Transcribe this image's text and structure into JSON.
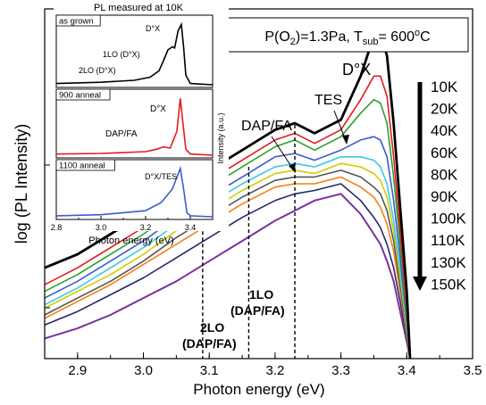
{
  "chart_data": [
    {
      "type": "line",
      "xlabel": "Photon energy (eV)",
      "ylabel": "log (PL Intensity)",
      "y_scale": "log",
      "xlim": [
        2.85,
        3.5
      ],
      "x_ticks": [
        "2.9",
        "3.0",
        "3.1",
        "3.2",
        "3.3",
        "3.4",
        "3.5"
      ],
      "condition_label": "P(O₂)=1.3Pa, T_sub= 600°C",
      "legend": {
        "labels": [
          "10K",
          "20K",
          "40K",
          "60K",
          "80K",
          "90K",
          "100K",
          "110K",
          "130K",
          "150K"
        ],
        "placement": "right"
      },
      "annotations": {
        "d0x": "D°X",
        "tes": "TES",
        "dap_fa": "DAP/FA",
        "lo1_line1": "1LO",
        "lo1_line2": "(DAP/FA)",
        "lo2_line1": "2LO",
        "lo2_line2": "(DAP/FA)"
      },
      "vertical_markers": [
        3.09,
        3.16,
        3.23
      ],
      "series": [
        {
          "name": "10K",
          "color": "#000000",
          "width": 2.8,
          "points": [
            [
              2.85,
              0.27
            ],
            [
              2.9,
              0.31
            ],
            [
              2.95,
              0.37
            ],
            [
              3.0,
              0.43
            ],
            [
              3.05,
              0.49
            ],
            [
              3.1,
              0.56
            ],
            [
              3.15,
              0.62
            ],
            [
              3.2,
              0.68
            ],
            [
              3.23,
              0.7
            ],
            [
              3.26,
              0.67
            ],
            [
              3.3,
              0.71
            ],
            [
              3.33,
              0.84
            ],
            [
              3.35,
              0.96
            ],
            [
              3.36,
              0.97
            ],
            [
              3.37,
              0.9
            ],
            [
              3.38,
              0.7
            ],
            [
              3.39,
              0.45
            ],
            [
              3.4,
              0.2
            ],
            [
              3.405,
              0.0
            ]
          ]
        },
        {
          "name": "20K",
          "color": "#e41a1c",
          "width": 1.6,
          "points": [
            [
              2.85,
              0.22
            ],
            [
              2.9,
              0.27
            ],
            [
              2.95,
              0.33
            ],
            [
              3.0,
              0.39
            ],
            [
              3.05,
              0.46
            ],
            [
              3.1,
              0.53
            ],
            [
              3.15,
              0.59
            ],
            [
              3.2,
              0.65
            ],
            [
              3.23,
              0.67
            ],
            [
              3.26,
              0.64
            ],
            [
              3.3,
              0.68
            ],
            [
              3.33,
              0.77
            ],
            [
              3.35,
              0.84
            ],
            [
              3.36,
              0.84
            ],
            [
              3.37,
              0.78
            ],
            [
              3.38,
              0.6
            ],
            [
              3.39,
              0.38
            ],
            [
              3.4,
              0.15
            ],
            [
              3.405,
              0.0
            ]
          ]
        },
        {
          "name": "40K",
          "color": "#2ca02c",
          "width": 1.6,
          "points": [
            [
              2.85,
              0.2
            ],
            [
              2.9,
              0.25
            ],
            [
              2.95,
              0.31
            ],
            [
              3.0,
              0.37
            ],
            [
              3.05,
              0.44
            ],
            [
              3.1,
              0.51
            ],
            [
              3.15,
              0.57
            ],
            [
              3.2,
              0.63
            ],
            [
              3.23,
              0.65
            ],
            [
              3.26,
              0.62
            ],
            [
              3.3,
              0.66
            ],
            [
              3.33,
              0.73
            ],
            [
              3.35,
              0.77
            ],
            [
              3.36,
              0.76
            ],
            [
              3.37,
              0.7
            ],
            [
              3.38,
              0.54
            ],
            [
              3.39,
              0.34
            ],
            [
              3.4,
              0.13
            ],
            [
              3.405,
              0.0
            ]
          ]
        },
        {
          "name": "60K",
          "color": "#3a5bcf",
          "width": 1.6,
          "points": [
            [
              2.85,
              0.18
            ],
            [
              2.9,
              0.23
            ],
            [
              2.95,
              0.29
            ],
            [
              3.0,
              0.35
            ],
            [
              3.05,
              0.42
            ],
            [
              3.1,
              0.48
            ],
            [
              3.15,
              0.54
            ],
            [
              3.2,
              0.6
            ],
            [
              3.23,
              0.61
            ],
            [
              3.26,
              0.59
            ],
            [
              3.3,
              0.62
            ],
            [
              3.33,
              0.65
            ],
            [
              3.35,
              0.66
            ],
            [
              3.36,
              0.65
            ],
            [
              3.37,
              0.6
            ],
            [
              3.38,
              0.47
            ],
            [
              3.39,
              0.3
            ],
            [
              3.4,
              0.11
            ],
            [
              3.405,
              0.0
            ]
          ]
        },
        {
          "name": "80K",
          "color": "#3cc8e6",
          "width": 1.6,
          "points": [
            [
              2.85,
              0.16
            ],
            [
              2.9,
              0.21
            ],
            [
              2.95,
              0.27
            ],
            [
              3.0,
              0.33
            ],
            [
              3.05,
              0.4
            ],
            [
              3.1,
              0.46
            ],
            [
              3.15,
              0.52
            ],
            [
              3.2,
              0.57
            ],
            [
              3.23,
              0.58
            ],
            [
              3.26,
              0.57
            ],
            [
              3.3,
              0.6
            ],
            [
              3.33,
              0.6
            ],
            [
              3.35,
              0.59
            ],
            [
              3.36,
              0.57
            ],
            [
              3.37,
              0.52
            ],
            [
              3.38,
              0.41
            ],
            [
              3.39,
              0.26
            ],
            [
              3.4,
              0.1
            ],
            [
              3.405,
              0.0
            ]
          ]
        },
        {
          "name": "90K",
          "color": "#d4cc00",
          "width": 1.6,
          "points": [
            [
              2.85,
              0.15
            ],
            [
              2.9,
              0.2
            ],
            [
              2.95,
              0.25
            ],
            [
              3.0,
              0.31
            ],
            [
              3.05,
              0.38
            ],
            [
              3.1,
              0.44
            ],
            [
              3.15,
              0.5
            ],
            [
              3.2,
              0.55
            ],
            [
              3.23,
              0.56
            ],
            [
              3.26,
              0.55
            ],
            [
              3.3,
              0.58
            ],
            [
              3.33,
              0.57
            ],
            [
              3.35,
              0.55
            ],
            [
              3.36,
              0.53
            ],
            [
              3.37,
              0.48
            ],
            [
              3.38,
              0.38
            ],
            [
              3.39,
              0.24
            ],
            [
              3.4,
              0.09
            ],
            [
              3.405,
              0.0
            ]
          ]
        },
        {
          "name": "100K",
          "color": "#555555",
          "width": 1.6,
          "points": [
            [
              2.85,
              0.13
            ],
            [
              2.9,
              0.18
            ],
            [
              2.95,
              0.23
            ],
            [
              3.0,
              0.29
            ],
            [
              3.05,
              0.36
            ],
            [
              3.1,
              0.42
            ],
            [
              3.15,
              0.48
            ],
            [
              3.2,
              0.53
            ],
            [
              3.23,
              0.54
            ],
            [
              3.26,
              0.54
            ],
            [
              3.3,
              0.56
            ],
            [
              3.33,
              0.54
            ],
            [
              3.35,
              0.51
            ],
            [
              3.36,
              0.49
            ],
            [
              3.37,
              0.44
            ],
            [
              3.38,
              0.35
            ],
            [
              3.39,
              0.22
            ],
            [
              3.4,
              0.08
            ],
            [
              3.405,
              0.0
            ]
          ]
        },
        {
          "name": "110K",
          "color": "#f57f17",
          "width": 1.6,
          "points": [
            [
              2.85,
              0.12
            ],
            [
              2.9,
              0.17
            ],
            [
              2.95,
              0.22
            ],
            [
              3.0,
              0.28
            ],
            [
              3.05,
              0.34
            ],
            [
              3.1,
              0.4
            ],
            [
              3.15,
              0.46
            ],
            [
              3.2,
              0.51
            ],
            [
              3.23,
              0.52
            ],
            [
              3.26,
              0.52
            ],
            [
              3.3,
              0.54
            ],
            [
              3.33,
              0.51
            ],
            [
              3.35,
              0.48
            ],
            [
              3.36,
              0.45
            ],
            [
              3.37,
              0.4
            ],
            [
              3.38,
              0.32
            ],
            [
              3.39,
              0.2
            ],
            [
              3.4,
              0.07
            ],
            [
              3.405,
              0.0
            ]
          ]
        },
        {
          "name": "130K",
          "color": "#27266e",
          "width": 1.6,
          "points": [
            [
              2.85,
              0.1
            ],
            [
              2.9,
              0.14
            ],
            [
              2.95,
              0.19
            ],
            [
              3.0,
              0.24
            ],
            [
              3.05,
              0.3
            ],
            [
              3.1,
              0.36
            ],
            [
              3.15,
              0.42
            ],
            [
              3.2,
              0.47
            ],
            [
              3.23,
              0.49
            ],
            [
              3.26,
              0.5
            ],
            [
              3.3,
              0.52
            ],
            [
              3.33,
              0.47
            ],
            [
              3.35,
              0.42
            ],
            [
              3.36,
              0.39
            ],
            [
              3.37,
              0.34
            ],
            [
              3.38,
              0.27
            ],
            [
              3.39,
              0.17
            ],
            [
              3.4,
              0.06
            ],
            [
              3.405,
              0.0
            ]
          ]
        },
        {
          "name": "150K",
          "color": "#7b2fa0",
          "width": 2.0,
          "points": [
            [
              2.85,
              0.06
            ],
            [
              2.9,
              0.09
            ],
            [
              2.95,
              0.13
            ],
            [
              3.0,
              0.18
            ],
            [
              3.05,
              0.23
            ],
            [
              3.1,
              0.29
            ],
            [
              3.15,
              0.35
            ],
            [
              3.2,
              0.41
            ],
            [
              3.23,
              0.44
            ],
            [
              3.26,
              0.47
            ],
            [
              3.3,
              0.49
            ],
            [
              3.33,
              0.43
            ],
            [
              3.35,
              0.37
            ],
            [
              3.36,
              0.34
            ],
            [
              3.37,
              0.29
            ],
            [
              3.38,
              0.23
            ],
            [
              3.39,
              0.14
            ],
            [
              3.4,
              0.05
            ],
            [
              3.405,
              0.0
            ]
          ]
        }
      ]
    },
    {
      "type": "line",
      "title": "PL measured at 10K",
      "xlabel": "Photon energy (eV)",
      "ylabel": "Intensity (a.u.)",
      "xlim": [
        2.8,
        3.5
      ],
      "x_ticks": [
        "2.8",
        "3.0",
        "3.2",
        "3.4"
      ],
      "x_minor_ticks": [
        "2.9",
        "3.1",
        "3.3"
      ],
      "panels": [
        {
          "label": "as grown",
          "color": "#000000",
          "annotations": [
            "D°X",
            "1LO (D°X)",
            "2LO (D°X)"
          ],
          "points": [
            [
              2.8,
              0.02
            ],
            [
              3.0,
              0.04
            ],
            [
              3.15,
              0.07
            ],
            [
              3.22,
              0.12
            ],
            [
              3.26,
              0.22
            ],
            [
              3.28,
              0.38
            ],
            [
              3.3,
              0.55
            ],
            [
              3.32,
              0.6
            ],
            [
              3.33,
              0.58
            ],
            [
              3.345,
              0.85
            ],
            [
              3.36,
              0.95
            ],
            [
              3.37,
              0.6
            ],
            [
              3.38,
              0.15
            ],
            [
              3.4,
              0.02
            ],
            [
              3.5,
              0.0
            ]
          ]
        },
        {
          "label": "900 anneal",
          "color": "#e41a1c",
          "annotations": [
            "D°X",
            "DAP/FA"
          ],
          "points": [
            [
              2.8,
              0.02
            ],
            [
              3.0,
              0.03
            ],
            [
              3.2,
              0.06
            ],
            [
              3.25,
              0.1
            ],
            [
              3.28,
              0.14
            ],
            [
              3.31,
              0.12
            ],
            [
              3.34,
              0.4
            ],
            [
              3.355,
              0.95
            ],
            [
              3.365,
              0.6
            ],
            [
              3.38,
              0.1
            ],
            [
              3.4,
              0.02
            ],
            [
              3.5,
              0.0
            ]
          ]
        },
        {
          "label": "1100 anneal",
          "color": "#3a5bcf",
          "annotations": [
            "D°X/TES"
          ],
          "points": [
            [
              2.8,
              0.02
            ],
            [
              3.0,
              0.04
            ],
            [
              3.2,
              0.12
            ],
            [
              3.27,
              0.28
            ],
            [
              3.32,
              0.55
            ],
            [
              3.355,
              0.95
            ],
            [
              3.37,
              0.55
            ],
            [
              3.385,
              0.08
            ],
            [
              3.4,
              0.02
            ],
            [
              3.5,
              0.0
            ]
          ]
        }
      ]
    }
  ]
}
